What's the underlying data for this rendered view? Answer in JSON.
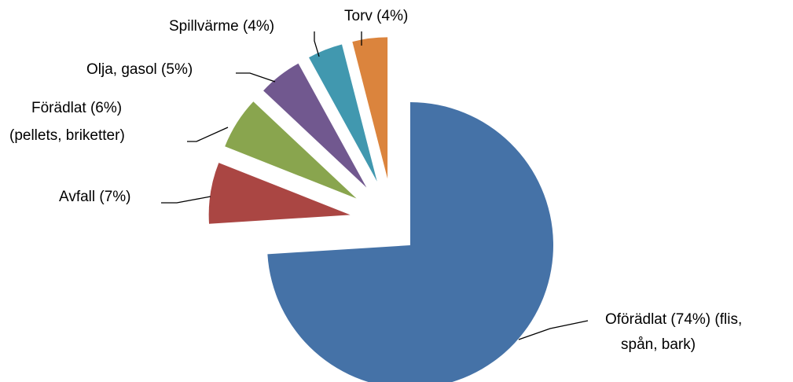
{
  "chart_data": {
    "type": "pie",
    "categories": [
      [
        "Oförädlat (74%) (flis,",
        "spån, bark)"
      ],
      [
        "Avfall (7%)"
      ],
      [
        "Förädlat (6%)",
        "(pellets, briketter)"
      ],
      [
        "Olja, gasol (5%)"
      ],
      [
        "Spillvärme (4%)"
      ],
      [
        "Torv (4%)"
      ]
    ],
    "values": [
      74,
      7,
      6,
      5,
      4,
      4
    ],
    "colors": [
      "#4572a7",
      "#aa4643",
      "#89a54e",
      "#71588f",
      "#4198af",
      "#db843d"
    ]
  }
}
